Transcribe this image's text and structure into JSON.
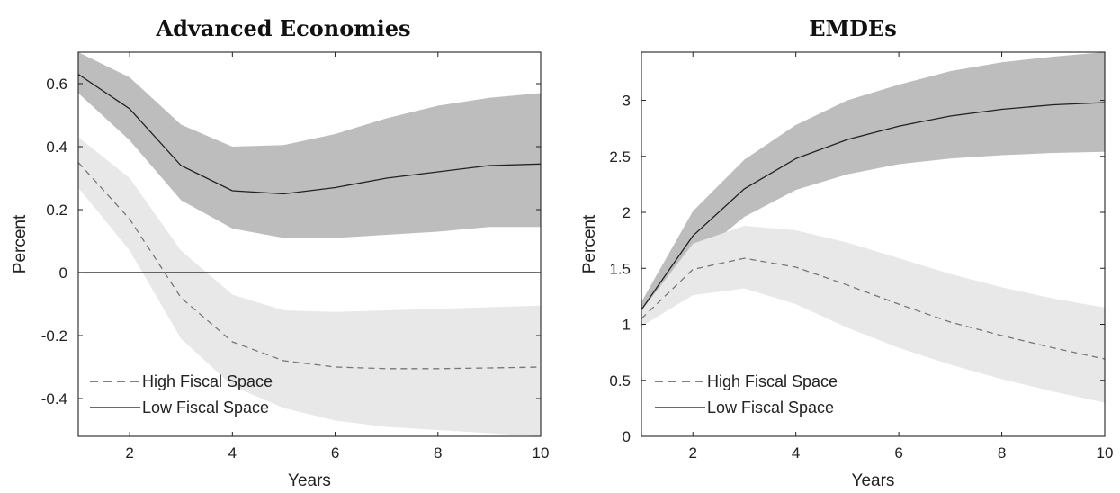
{
  "chart_data": [
    {
      "type": "line",
      "title": "Advanced Economies",
      "xlabel": "Years",
      "ylabel": "Percent",
      "xlim": [
        1,
        10
      ],
      "ylim": [
        -0.52,
        0.7
      ],
      "xticks": [
        2,
        4,
        6,
        8,
        10
      ],
      "yticks": [
        -0.4,
        -0.2,
        0,
        0.2,
        0.4,
        0.6
      ],
      "zero_line": true,
      "grid": false,
      "legend_position": "bottom-left",
      "x": [
        1,
        2,
        3,
        4,
        5,
        6,
        7,
        8,
        9,
        10
      ],
      "series": [
        {
          "name": "High Fiscal Space",
          "style": "dashed",
          "values": [
            0.35,
            0.17,
            -0.08,
            -0.22,
            -0.28,
            -0.3,
            -0.305,
            -0.305,
            -0.303,
            -0.3
          ],
          "lower": [
            0.27,
            0.07,
            -0.21,
            -0.36,
            -0.43,
            -0.47,
            -0.49,
            -0.5,
            -0.51,
            -0.52
          ],
          "upper": [
            0.43,
            0.3,
            0.07,
            -0.07,
            -0.12,
            -0.125,
            -0.12,
            -0.115,
            -0.11,
            -0.105
          ]
        },
        {
          "name": "Low Fiscal Space",
          "style": "solid",
          "values": [
            0.63,
            0.52,
            0.34,
            0.26,
            0.25,
            0.27,
            0.3,
            0.32,
            0.34,
            0.345
          ],
          "lower": [
            0.57,
            0.42,
            0.23,
            0.14,
            0.11,
            0.11,
            0.12,
            0.13,
            0.145,
            0.145
          ],
          "upper": [
            0.7,
            0.62,
            0.47,
            0.4,
            0.405,
            0.44,
            0.49,
            0.53,
            0.555,
            0.57
          ]
        }
      ]
    },
    {
      "type": "line",
      "title": "EMDEs",
      "xlabel": "Years",
      "ylabel": "Percent",
      "xlim": [
        1,
        10
      ],
      "ylim": [
        0,
        3.43
      ],
      "xticks": [
        2,
        4,
        6,
        8,
        10
      ],
      "yticks": [
        0,
        0.5,
        1,
        1.5,
        2,
        2.5,
        3
      ],
      "zero_line": false,
      "grid": false,
      "legend_position": "bottom-left",
      "x": [
        1,
        2,
        3,
        4,
        5,
        6,
        7,
        8,
        9,
        10
      ],
      "series": [
        {
          "name": "High Fiscal Space",
          "style": "dashed",
          "values": [
            1.05,
            1.49,
            1.59,
            1.51,
            1.35,
            1.18,
            1.02,
            0.9,
            0.79,
            0.69
          ],
          "lower": [
            0.98,
            1.26,
            1.32,
            1.18,
            0.97,
            0.79,
            0.64,
            0.51,
            0.4,
            0.3
          ],
          "upper": [
            1.12,
            1.72,
            1.88,
            1.84,
            1.73,
            1.59,
            1.45,
            1.33,
            1.23,
            1.15
          ]
        },
        {
          "name": "Low Fiscal Space",
          "style": "solid",
          "values": [
            1.13,
            1.79,
            2.21,
            2.48,
            2.65,
            2.77,
            2.86,
            2.92,
            2.96,
            2.98
          ],
          "lower": [
            1.05,
            1.58,
            1.96,
            2.2,
            2.34,
            2.43,
            2.48,
            2.51,
            2.53,
            2.54
          ],
          "upper": [
            1.2,
            2.01,
            2.47,
            2.78,
            3.0,
            3.14,
            3.26,
            3.34,
            3.39,
            3.43
          ]
        }
      ]
    }
  ],
  "colors": {
    "low_band": "#bdbdbd",
    "high_band": "#e8e8e8",
    "low_line": "#222222",
    "high_line": "#777777"
  }
}
